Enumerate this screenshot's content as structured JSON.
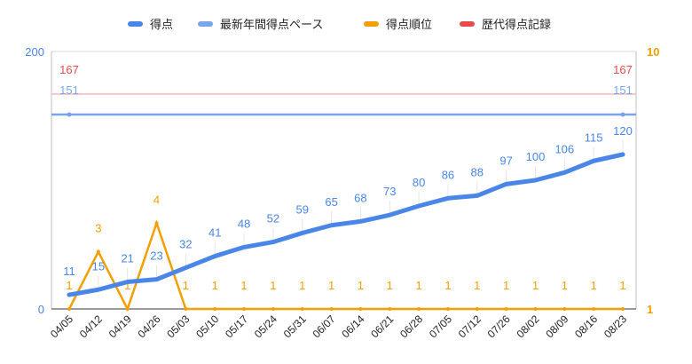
{
  "chart_data": {
    "type": "line",
    "categories": [
      "04/05",
      "04/12",
      "04/19",
      "04/26",
      "05/03",
      "05/10",
      "05/17",
      "05/24",
      "05/31",
      "06/07",
      "06/14",
      "06/21",
      "06/28",
      "07/05",
      "07/12",
      "07/26",
      "08/02",
      "08/09",
      "08/16",
      "08/23"
    ],
    "series": [
      {
        "name": "得点",
        "axis": "left",
        "color": "#4a86e8",
        "values": [
          11,
          15,
          21,
          23,
          32,
          41,
          48,
          52,
          59,
          65,
          68,
          73,
          80,
          86,
          88,
          97,
          100,
          106,
          115,
          120
        ],
        "labels": [
          "11",
          "15",
          "21",
          "23",
          "32",
          "41",
          "48",
          "52",
          "59",
          "65",
          "68",
          "73",
          "80",
          "86",
          "88",
          "97",
          "100",
          "106",
          "115",
          "120"
        ]
      },
      {
        "name": "最新年間得点ペース",
        "axis": "left",
        "color": "#7aa5ec",
        "value": 151,
        "label": "151"
      },
      {
        "name": "得点順位",
        "axis": "right",
        "color": "#f2a000",
        "values": [
          1,
          3,
          1,
          4,
          1,
          1,
          1,
          1,
          1,
          1,
          1,
          1,
          1,
          1,
          1,
          1,
          1,
          1,
          1,
          1
        ],
        "labels": [
          "1",
          "3",
          "1",
          "4",
          "1",
          "1",
          "1",
          "1",
          "1",
          "1",
          "1",
          "1",
          "1",
          "1",
          "1",
          "1",
          "1",
          "1",
          "1",
          "1"
        ]
      },
      {
        "name": "歴代得点記録",
        "axis": "left",
        "color": "#e84b4b",
        "value": 167,
        "label": "167"
      }
    ],
    "y_left": {
      "min": 0,
      "max": 200,
      "ticks": [
        "0",
        "200"
      ]
    },
    "y_right": {
      "min": 1,
      "max": 10,
      "ticks": [
        "1",
        "10"
      ],
      "reversed": false
    },
    "legend_position": "top",
    "grid": true
  }
}
